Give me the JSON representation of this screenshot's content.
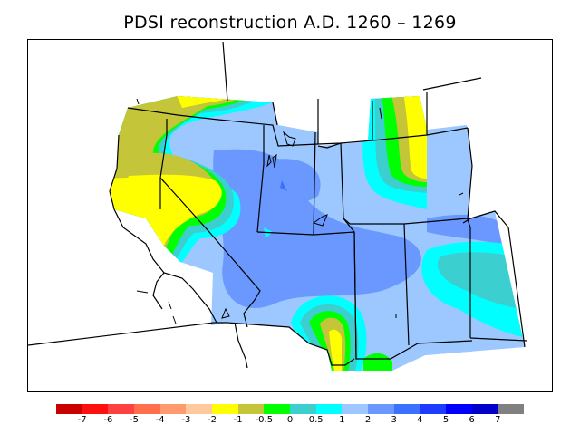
{
  "title": "PDSI reconstruction A.D. 1260 – 1269",
  "legend": {
    "colors": [
      "#c80000",
      "#ff1010",
      "#ff4040",
      "#ff6f4b",
      "#ff9a6e",
      "#ffc99e",
      "#ffff00",
      "#c5c53a",
      "#00ff00",
      "#3ccfcf",
      "#00ffff",
      "#9cc8ff",
      "#6a98ff",
      "#3c70ff",
      "#1e3cff",
      "#0000ff",
      "#0000c8",
      "#808080"
    ],
    "tick_labels": [
      "-7",
      "-6",
      "-5",
      "-4",
      "-3",
      "-2",
      "-1",
      "-0.5",
      "0",
      "0.5",
      "1",
      "2",
      "3",
      "4",
      "5",
      "6",
      "7"
    ]
  }
}
